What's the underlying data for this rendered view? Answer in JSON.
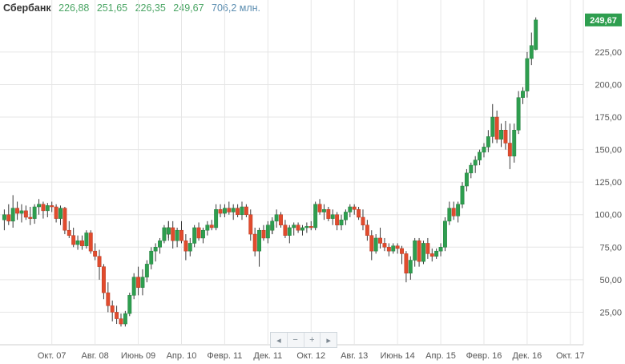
{
  "header": {
    "ticker": "Сбербанк",
    "open": "226,88",
    "high": "251,65",
    "low": "226,35",
    "close": "249,67",
    "volume": "706,2 млн."
  },
  "colors": {
    "up": "#2e9e4f",
    "down": "#e14b2d",
    "grid": "#e6e6e6",
    "axis_text": "#555555",
    "price_label_bg": "#2e9e4f"
  },
  "nav": {
    "buttons": [
      "◂",
      "−",
      "+",
      "▸"
    ],
    "button_names": [
      "scroll-left-button",
      "zoom-out-button",
      "zoom-in-button",
      "scroll-right-button"
    ],
    "icon_names": [
      "chevron-left-icon",
      "minus-icon",
      "plus-icon",
      "chevron-right-icon"
    ]
  },
  "chart_data": {
    "type": "candlestick",
    "title": "Сбербанк",
    "last_price_label": "249,67",
    "ylim": [
      0,
      265
    ],
    "y_ticks": [
      25,
      50,
      75,
      100,
      125,
      150,
      175,
      200,
      225
    ],
    "y_tick_labels": [
      "25,00",
      "50,00",
      "75,00",
      "100,00",
      "125,00",
      "150,00",
      "175,00",
      "200,00",
      "225,00"
    ],
    "x_ticks": [
      "2007-10",
      "2008-08",
      "2009-06",
      "2010-04",
      "2011-02",
      "2011-12",
      "2012-10",
      "2013-08",
      "2014-06",
      "2015-04",
      "2016-02",
      "2016-12",
      "2017-10"
    ],
    "x_tick_labels": [
      "Окт. 07",
      "Авг. 08",
      "Июнь 09",
      "Апр. 10",
      "Февр. 11",
      "Дек. 11",
      "Окт. 12",
      "Авг. 13",
      "Июнь 14",
      "Апр. 15",
      "Февр. 16",
      "Дек. 16",
      "Окт. 17"
    ],
    "xlim": [
      "2006-10",
      "2018-01"
    ],
    "grid": true,
    "candles_ohlc": [
      [
        "2006-11",
        96,
        104,
        88,
        100
      ],
      [
        "2006-12",
        100,
        108,
        92,
        95
      ],
      [
        "2007-01",
        95,
        115,
        90,
        105
      ],
      [
        "2007-02",
        105,
        110,
        96,
        101
      ],
      [
        "2007-03",
        101,
        108,
        94,
        103
      ],
      [
        "2007-04",
        103,
        107,
        96,
        98
      ],
      [
        "2007-05",
        98,
        106,
        92,
        97
      ],
      [
        "2007-06",
        97,
        108,
        93,
        106
      ],
      [
        "2007-07",
        106,
        112,
        100,
        108
      ],
      [
        "2007-08",
        108,
        110,
        97,
        103
      ],
      [
        "2007-09",
        103,
        109,
        98,
        107
      ],
      [
        "2007-10",
        107,
        110,
        102,
        106
      ],
      [
        "2007-11",
        106,
        108,
        94,
        97
      ],
      [
        "2007-12",
        97,
        107,
        92,
        105
      ],
      [
        "2008-01",
        105,
        106,
        85,
        88
      ],
      [
        "2008-02",
        88,
        95,
        82,
        84
      ],
      [
        "2008-03",
        84,
        90,
        75,
        77
      ],
      [
        "2008-04",
        77,
        84,
        73,
        80
      ],
      [
        "2008-05",
        80,
        84,
        73,
        76
      ],
      [
        "2008-06",
        76,
        88,
        74,
        86
      ],
      [
        "2008-07",
        86,
        88,
        70,
        72
      ],
      [
        "2008-08",
        72,
        78,
        65,
        68
      ],
      [
        "2008-09",
        68,
        73,
        50,
        60
      ],
      [
        "2008-10",
        60,
        62,
        35,
        40
      ],
      [
        "2008-11",
        40,
        48,
        25,
        30
      ],
      [
        "2008-12",
        30,
        34,
        18,
        25
      ],
      [
        "2009-01",
        25,
        30,
        16,
        20
      ],
      [
        "2009-02",
        20,
        24,
        14,
        16
      ],
      [
        "2009-03",
        16,
        26,
        14,
        24
      ],
      [
        "2009-04",
        24,
        40,
        22,
        38
      ],
      [
        "2009-05",
        38,
        55,
        35,
        52
      ],
      [
        "2009-06",
        52,
        60,
        38,
        44
      ],
      [
        "2009-07",
        44,
        58,
        38,
        52
      ],
      [
        "2009-08",
        52,
        65,
        48,
        62
      ],
      [
        "2009-09",
        62,
        75,
        58,
        72
      ],
      [
        "2009-10",
        72,
        78,
        64,
        75
      ],
      [
        "2009-11",
        75,
        82,
        70,
        80
      ],
      [
        "2009-12",
        80,
        92,
        78,
        90
      ],
      [
        "2009-13",
        90,
        95,
        82,
        85
      ],
      [
        "2010-01",
        85,
        95,
        80,
        90
      ],
      [
        "2010-02",
        90,
        95,
        74,
        80
      ],
      [
        "2010-03",
        80,
        90,
        75,
        88
      ],
      [
        "2010-04",
        88,
        95,
        78,
        80
      ],
      [
        "2010-05",
        80,
        85,
        65,
        72
      ],
      [
        "2010-06",
        72,
        82,
        68,
        78
      ],
      [
        "2010-07",
        78,
        92,
        75,
        90
      ],
      [
        "2010-08",
        90,
        94,
        80,
        82
      ],
      [
        "2010-09",
        82,
        90,
        78,
        88
      ],
      [
        "2010-10",
        88,
        95,
        84,
        92
      ],
      [
        "2010-11",
        92,
        96,
        88,
        90
      ],
      [
        "2010-12",
        90,
        108,
        88,
        104
      ],
      [
        "2011-01",
        104,
        108,
        98,
        101
      ],
      [
        "2011-02",
        101,
        108,
        98,
        105
      ],
      [
        "2011-03",
        105,
        110,
        100,
        102
      ],
      [
        "2011-04",
        102,
        108,
        96,
        105
      ],
      [
        "2011-05",
        105,
        108,
        98,
        100
      ],
      [
        "2011-06",
        100,
        110,
        96,
        106
      ],
      [
        "2011-07",
        106,
        108,
        98,
        100
      ],
      [
        "2011-08",
        100,
        104,
        80,
        85
      ],
      [
        "2011-09",
        85,
        90,
        68,
        72
      ],
      [
        "2011-10",
        72,
        90,
        60,
        88
      ],
      [
        "2011-11",
        88,
        92,
        80,
        82
      ],
      [
        "2011-12",
        82,
        95,
        78,
        92
      ],
      [
        "2011-13",
        92,
        96,
        85,
        88
      ],
      [
        "2012-01",
        88,
        98,
        85,
        95
      ],
      [
        "2012-02",
        95,
        104,
        90,
        100
      ],
      [
        "2012-03",
        100,
        102,
        90,
        92
      ],
      [
        "2012-04",
        92,
        96,
        82,
        84
      ],
      [
        "2012-05",
        84,
        92,
        78,
        90
      ],
      [
        "2012-06",
        90,
        94,
        84,
        92
      ],
      [
        "2012-07",
        92,
        94,
        86,
        88
      ],
      [
        "2012-08",
        88,
        92,
        84,
        90
      ],
      [
        "2012-09",
        90,
        94,
        86,
        91
      ],
      [
        "2012-10",
        91,
        95,
        88,
        90
      ],
      [
        "2012-11",
        90,
        110,
        88,
        108
      ],
      [
        "2012-12",
        108,
        112,
        100,
        102
      ],
      [
        "2013-01",
        102,
        108,
        96,
        104
      ],
      [
        "2013-02",
        104,
        106,
        95,
        97
      ],
      [
        "2013-03",
        97,
        104,
        92,
        100
      ],
      [
        "2013-04",
        100,
        102,
        88,
        92
      ],
      [
        "2013-05",
        92,
        100,
        88,
        96
      ],
      [
        "2013-06",
        96,
        104,
        92,
        102
      ],
      [
        "2013-07",
        102,
        108,
        98,
        106
      ],
      [
        "2013-08",
        106,
        108,
        100,
        104
      ],
      [
        "2013-09",
        104,
        106,
        96,
        98
      ],
      [
        "2013-10",
        98,
        104,
        88,
        92
      ],
      [
        "2013-11",
        92,
        96,
        80,
        84
      ],
      [
        "2013-12",
        84,
        88,
        65,
        72
      ],
      [
        "2014-01",
        72,
        85,
        70,
        82
      ],
      [
        "2014-02",
        82,
        90,
        74,
        78
      ],
      [
        "2014-03",
        78,
        82,
        72,
        75
      ],
      [
        "2014-04",
        75,
        78,
        68,
        72
      ],
      [
        "2014-05",
        72,
        78,
        70,
        76
      ],
      [
        "2014-06",
        76,
        78,
        70,
        74
      ],
      [
        "2014-07",
        74,
        76,
        62,
        70
      ],
      [
        "2014-08",
        70,
        72,
        48,
        55
      ],
      [
        "2014-09",
        55,
        68,
        50,
        65
      ],
      [
        "2014-10",
        65,
        82,
        60,
        80
      ],
      [
        "2014-11",
        80,
        82,
        60,
        64
      ],
      [
        "2014-12",
        64,
        80,
        62,
        78
      ],
      [
        "2015-01",
        78,
        82,
        66,
        70
      ],
      [
        "2015-02",
        70,
        74,
        64,
        68
      ],
      [
        "2015-03",
        68,
        74,
        66,
        72
      ],
      [
        "2015-04",
        72,
        78,
        68,
        75
      ],
      [
        "2015-05",
        75,
        98,
        72,
        95
      ],
      [
        "2015-06",
        95,
        110,
        92,
        105
      ],
      [
        "2015-07",
        105,
        110,
        96,
        99
      ],
      [
        "2015-08",
        99,
        110,
        94,
        108
      ],
      [
        "2015-09",
        108,
        125,
        105,
        122
      ],
      [
        "2015-10",
        122,
        135,
        118,
        132
      ],
      [
        "2015-11",
        132,
        140,
        128,
        138
      ],
      [
        "2015-12",
        138,
        145,
        132,
        142
      ],
      [
        "2016-01",
        142,
        150,
        138,
        148
      ],
      [
        "2016-02",
        148,
        155,
        144,
        152
      ],
      [
        "2016-03",
        152,
        165,
        148,
        160
      ],
      [
        "2016-04",
        160,
        185,
        155,
        175
      ],
      [
        "2016-05",
        175,
        180,
        155,
        158
      ],
      [
        "2016-06",
        158,
        170,
        152,
        165
      ],
      [
        "2016-07",
        165,
        172,
        150,
        155
      ],
      [
        "2016-08",
        155,
        170,
        135,
        145
      ],
      [
        "2016-09",
        145,
        170,
        140,
        165
      ],
      [
        "2016-10",
        165,
        195,
        162,
        190
      ],
      [
        "2016-11",
        190,
        198,
        185,
        195
      ],
      [
        "2016-12",
        195,
        225,
        190,
        220
      ],
      [
        "2017-01",
        220,
        240,
        215,
        230
      ],
      [
        "2017-02",
        226.88,
        251.65,
        226.35,
        249.67
      ]
    ]
  }
}
